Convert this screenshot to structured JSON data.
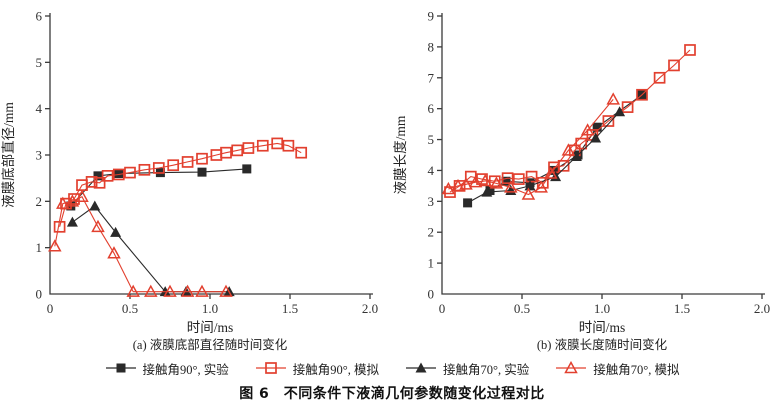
{
  "caption": "图 6　不同条件下液滴几何参数随变化过程对比",
  "colors": {
    "experiment_black": "#2a2a2a",
    "simulation_red": "#e2402f",
    "axis": "#3a3a3a"
  },
  "legend": [
    {
      "label": "接触角90°, 实验",
      "marker": "square-filled",
      "color": "#2a2a2a"
    },
    {
      "label": "接触角90°, 模拟",
      "marker": "square-open",
      "color": "#e2402f"
    },
    {
      "label": "接触角70°, 实验",
      "marker": "triangle-filled",
      "color": "#2a2a2a"
    },
    {
      "label": "接触角70°, 模拟",
      "marker": "triangle-open",
      "color": "#e2402f"
    }
  ],
  "chart_data": [
    {
      "type": "line",
      "subtitle": "(a) 液膜底部直径随时间变化",
      "xlabel": "时间/ms",
      "ylabel": "液膜底部直径/mm",
      "xlim": [
        0,
        2.0
      ],
      "ylim": [
        0,
        6
      ],
      "xticks": [
        0,
        0.5,
        1.0,
        1.5,
        2.0
      ],
      "xtick_labels": [
        "0",
        "0.5",
        "1.0",
        "1.5",
        "2.0"
      ],
      "yticks": [
        0,
        1,
        2,
        3,
        4,
        5,
        6
      ],
      "ytick_labels": [
        "0",
        "1",
        "2",
        "3",
        "4",
        "5",
        "6"
      ],
      "grid": false,
      "legend_position": "below-shared",
      "series": [
        {
          "name": "接触角90°, 实验",
          "marker": "square-filled",
          "color": "#2a2a2a",
          "points": [
            [
              0.13,
              1.9
            ],
            [
              0.3,
              2.55
            ],
            [
              0.43,
              2.6
            ],
            [
              0.69,
              2.62
            ],
            [
              0.95,
              2.63
            ],
            [
              1.23,
              2.7
            ]
          ]
        },
        {
          "name": "接触角90°, 模拟",
          "marker": "square-open",
          "color": "#e2402f",
          "points": [
            [
              0.06,
              1.45
            ],
            [
              0.1,
              1.95
            ],
            [
              0.15,
              2.05
            ],
            [
              0.2,
              2.35
            ],
            [
              0.26,
              2.42
            ],
            [
              0.31,
              2.4
            ],
            [
              0.36,
              2.55
            ],
            [
              0.43,
              2.58
            ],
            [
              0.5,
              2.62
            ],
            [
              0.59,
              2.68
            ],
            [
              0.68,
              2.72
            ],
            [
              0.77,
              2.78
            ],
            [
              0.86,
              2.85
            ],
            [
              0.95,
              2.92
            ],
            [
              1.04,
              3.0
            ],
            [
              1.1,
              3.05
            ],
            [
              1.17,
              3.1
            ],
            [
              1.24,
              3.15
            ],
            [
              1.33,
              3.2
            ],
            [
              1.42,
              3.25
            ],
            [
              1.49,
              3.2
            ],
            [
              1.57,
              3.05
            ]
          ]
        },
        {
          "name": "接触角70°, 实验",
          "marker": "triangle-filled",
          "color": "#2a2a2a",
          "points": [
            [
              0.14,
              1.55
            ],
            [
              0.28,
              1.9
            ],
            [
              0.41,
              1.33
            ],
            [
              0.72,
              0.05
            ],
            [
              0.85,
              0.05
            ],
            [
              1.12,
              0.05
            ]
          ]
        },
        {
          "name": "接触角70°, 模拟",
          "marker": "triangle-open",
          "color": "#e2402f",
          "points": [
            [
              0.03,
              1.03
            ],
            [
              0.08,
              1.95
            ],
            [
              0.14,
              2.0
            ],
            [
              0.2,
              2.1
            ],
            [
              0.3,
              1.45
            ],
            [
              0.4,
              0.88
            ],
            [
              0.52,
              0.05
            ],
            [
              0.63,
              0.05
            ],
            [
              0.75,
              0.05
            ],
            [
              0.86,
              0.05
            ],
            [
              0.95,
              0.05
            ],
            [
              1.1,
              0.05
            ]
          ]
        }
      ]
    },
    {
      "type": "line",
      "subtitle": "(b) 液膜长度随时间变化",
      "xlabel": "时间/ms",
      "ylabel": "液膜长度/mm",
      "xlim": [
        0,
        2.0
      ],
      "ylim": [
        0,
        9
      ],
      "xticks": [
        0,
        0.5,
        1.0,
        1.5,
        2.0
      ],
      "xtick_labels": [
        "0",
        "0.5",
        "1.0",
        "1.5",
        "2.0"
      ],
      "yticks": [
        0,
        1,
        2,
        3,
        4,
        5,
        6,
        7,
        8,
        9
      ],
      "ytick_labels": [
        "0",
        "1",
        "2",
        "3",
        "4",
        "5",
        "6",
        "7",
        "8",
        "9"
      ],
      "grid": false,
      "legend_position": "below-shared",
      "series": [
        {
          "name": "接触角90°, 实验",
          "marker": "square-filled",
          "color": "#2a2a2a",
          "points": [
            [
              0.16,
              2.95
            ],
            [
              0.3,
              3.35
            ],
            [
              0.4,
              3.65
            ],
            [
              0.55,
              3.6
            ],
            [
              0.7,
              4.0
            ],
            [
              0.85,
              4.5
            ],
            [
              0.97,
              5.4
            ],
            [
              1.25,
              6.45
            ]
          ]
        },
        {
          "name": "接触角90°, 模拟",
          "marker": "square-open",
          "color": "#e2402f",
          "points": [
            [
              0.05,
              3.3
            ],
            [
              0.11,
              3.5
            ],
            [
              0.18,
              3.8
            ],
            [
              0.25,
              3.72
            ],
            [
              0.33,
              3.65
            ],
            [
              0.41,
              3.75
            ],
            [
              0.48,
              3.72
            ],
            [
              0.56,
              3.8
            ],
            [
              0.63,
              3.6
            ],
            [
              0.7,
              4.1
            ],
            [
              0.76,
              4.15
            ],
            [
              0.83,
              4.65
            ],
            [
              0.87,
              4.87
            ],
            [
              0.94,
              5.15
            ],
            [
              1.04,
              5.6
            ],
            [
              1.16,
              6.05
            ],
            [
              1.25,
              6.45
            ],
            [
              1.36,
              7.0
            ],
            [
              1.45,
              7.4
            ],
            [
              1.55,
              7.9
            ]
          ]
        },
        {
          "name": "接触角70°, 实验",
          "marker": "triangle-filled",
          "color": "#2a2a2a",
          "points": [
            [
              0.28,
              3.3
            ],
            [
              0.43,
              3.35
            ],
            [
              0.55,
              3.5
            ],
            [
              0.71,
              3.8
            ],
            [
              0.84,
              4.45
            ],
            [
              0.96,
              5.05
            ],
            [
              1.11,
              5.9
            ]
          ]
        },
        {
          "name": "接触角70°, 模拟",
          "marker": "triangle-open",
          "color": "#e2402f",
          "points": [
            [
              0.04,
              3.4
            ],
            [
              0.1,
              3.5
            ],
            [
              0.15,
              3.55
            ],
            [
              0.21,
              3.62
            ],
            [
              0.27,
              3.66
            ],
            [
              0.34,
              3.58
            ],
            [
              0.43,
              3.45
            ],
            [
              0.54,
              3.22
            ],
            [
              0.62,
              3.45
            ],
            [
              0.68,
              3.9
            ],
            [
              0.79,
              4.65
            ],
            [
              0.91,
              5.3
            ],
            [
              1.07,
              6.3
            ]
          ]
        }
      ]
    }
  ]
}
